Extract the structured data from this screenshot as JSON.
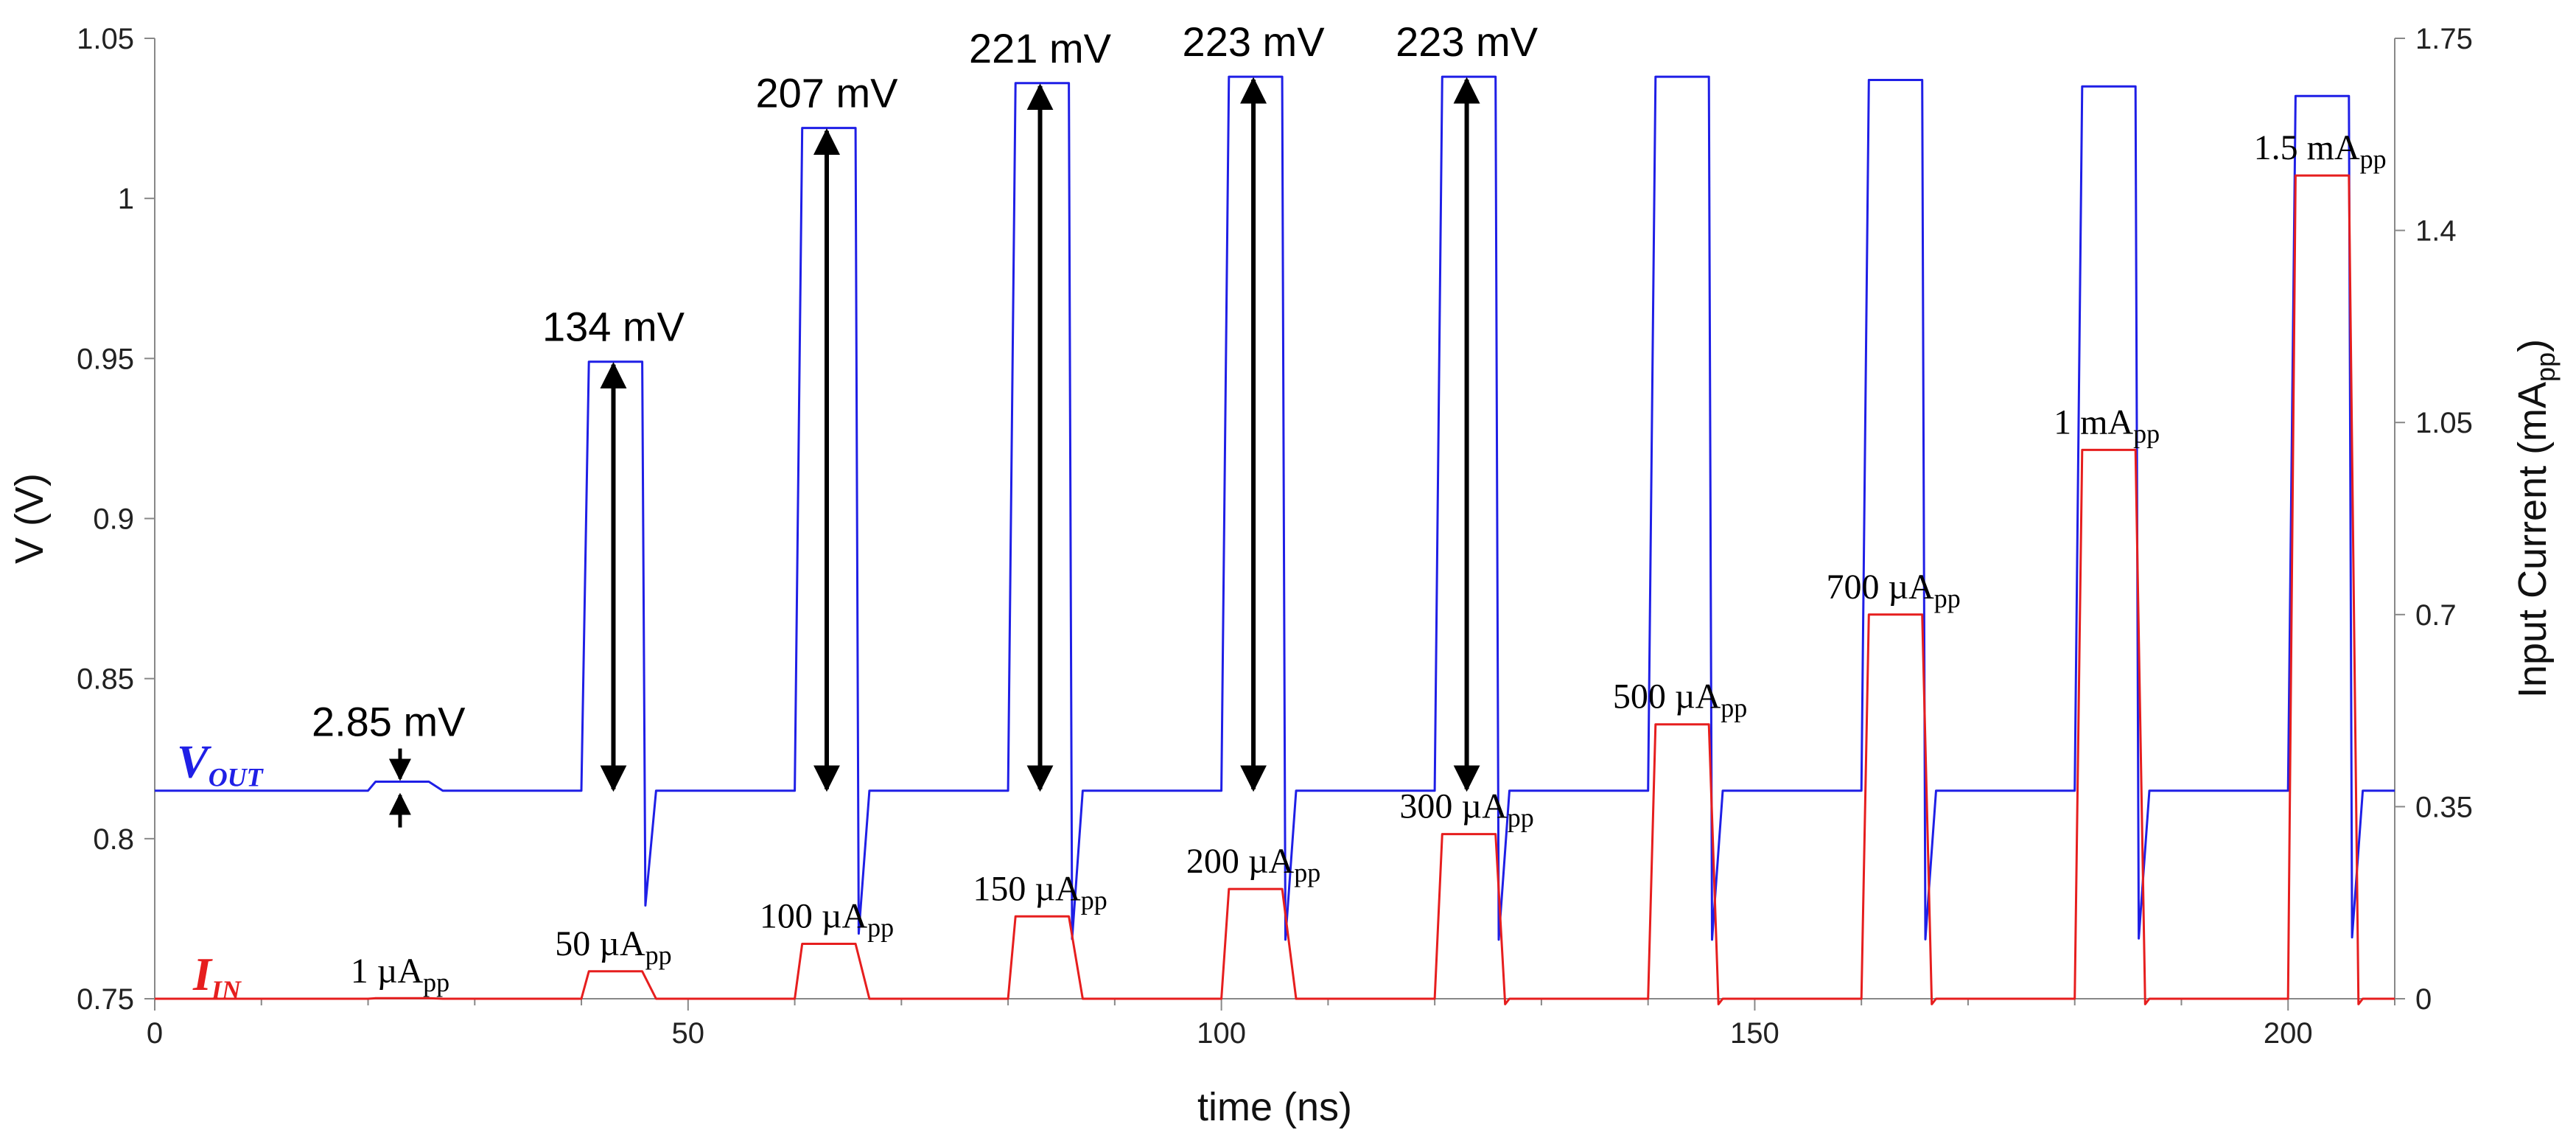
{
  "chart_data": {
    "type": "line",
    "xlabel": "time (ns)",
    "ylabel_left": "V (V)",
    "ylabel_right": "Input Current (mA",
    "ylabel_right_sub": "pp",
    "ylabel_right_close": ")",
    "xlim": [
      0,
      210
    ],
    "ylim_left": [
      0.75,
      1.05
    ],
    "ylim_right": [
      0,
      1.75
    ],
    "x_ticks": [
      0,
      50,
      100,
      150,
      200
    ],
    "x_tick_labels": [
      "0",
      "50",
      "100",
      "150",
      "200"
    ],
    "y_left_ticks": [
      0.75,
      0.8,
      0.85,
      0.9,
      0.95,
      1.0,
      1.05
    ],
    "y_left_tick_labels": [
      "0.75",
      "0.8",
      "0.85",
      "0.9",
      "0.95",
      "1",
      "1.05"
    ],
    "y_right_ticks": [
      0,
      0.35,
      0.7,
      1.05,
      1.4,
      1.75
    ],
    "y_right_tick_labels": [
      "0",
      "0.35",
      "0.7",
      "1.05",
      "1.4",
      "1.75"
    ],
    "series": [
      {
        "name": "V_OUT",
        "label_main": "V",
        "label_sub": "OUT",
        "color": "#1f1fe6",
        "axis": "left",
        "baseline": 0.815,
        "pulses": [
          {
            "start": 20,
            "end": 26,
            "peak": 0.8178
          },
          {
            "start": 40,
            "end": 46,
            "peak": 0.949
          },
          {
            "start": 60,
            "end": 66,
            "peak": 1.022
          },
          {
            "start": 80,
            "end": 86,
            "peak": 1.036
          },
          {
            "start": 100,
            "end": 106,
            "peak": 1.038
          },
          {
            "start": 120,
            "end": 126,
            "peak": 1.038
          },
          {
            "start": 140,
            "end": 146,
            "peak": 1.038
          },
          {
            "start": 160,
            "end": 166,
            "peak": 1.037
          },
          {
            "start": 180,
            "end": 186,
            "peak": 1.035
          },
          {
            "start": 200,
            "end": 206,
            "peak": 1.032
          }
        ]
      },
      {
        "name": "I_IN",
        "label_main": "I",
        "label_sub": "IN",
        "color": "#e61e1e",
        "axis": "right",
        "baseline": 0.0,
        "pulses": [
          {
            "start": 20,
            "end": 26,
            "peak": 0.001,
            "label_main": "1 µA",
            "label_sub": "pp"
          },
          {
            "start": 40,
            "end": 46,
            "peak": 0.05,
            "label_main": "50 µA",
            "label_sub": "pp"
          },
          {
            "start": 60,
            "end": 66,
            "peak": 0.1,
            "label_main": "100 µA",
            "label_sub": "pp"
          },
          {
            "start": 80,
            "end": 86,
            "peak": 0.15,
            "label_main": "150 µA",
            "label_sub": "pp"
          },
          {
            "start": 100,
            "end": 106,
            "peak": 0.2,
            "label_main": "200 µA",
            "label_sub": "pp"
          },
          {
            "start": 120,
            "end": 126,
            "peak": 0.3,
            "label_main": "300 µA",
            "label_sub": "pp"
          },
          {
            "start": 140,
            "end": 146,
            "peak": 0.5,
            "label_main": "500 µA",
            "label_sub": "pp"
          },
          {
            "start": 160,
            "end": 166,
            "peak": 0.7,
            "label_main": "700 µA",
            "label_sub": "pp"
          },
          {
            "start": 180,
            "end": 186,
            "peak": 1.0,
            "label_main": "1 mA",
            "label_sub": "pp"
          },
          {
            "start": 200,
            "end": 206,
            "peak": 1.5,
            "label_main": "1.5 mA",
            "label_sub": "pp"
          }
        ]
      }
    ],
    "annotations": [
      {
        "text": "2.85 mV",
        "x": 23,
        "from": 0.815,
        "to": 0.8178,
        "style": "inward"
      },
      {
        "text": "134 mV",
        "x": 43,
        "from": 0.815,
        "to": 0.949,
        "style": "double"
      },
      {
        "text": "207 mV",
        "x": 63,
        "from": 0.815,
        "to": 1.022,
        "style": "double"
      },
      {
        "text": "221 mV",
        "x": 83,
        "from": 0.815,
        "to": 1.036,
        "style": "double"
      },
      {
        "text": "223 mV",
        "x": 103,
        "from": 0.815,
        "to": 1.038,
        "style": "double"
      },
      {
        "text": "223 mV",
        "x": 123,
        "from": 0.815,
        "to": 1.038,
        "style": "double"
      }
    ]
  }
}
